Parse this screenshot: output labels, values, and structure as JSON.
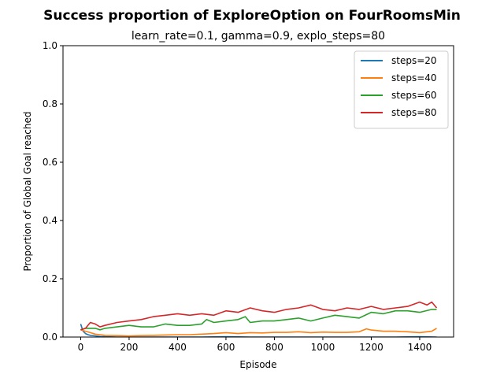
{
  "chart_data": {
    "type": "line",
    "title": "Success proportion of ExploreOption on FourRoomsMin",
    "subtitle": "learn_rate=0.1, gamma=0.9, explo_steps=80",
    "xlabel": "Episode",
    "ylabel": "Proportion of Global Goal reached",
    "xlim": [
      -73,
      1540
    ],
    "ylim": [
      0,
      1
    ],
    "xticks": [
      0,
      200,
      400,
      600,
      800,
      1000,
      1200,
      1400
    ],
    "yticks": [
      0.0,
      0.2,
      0.4,
      0.6,
      0.8,
      1.0
    ],
    "yticklabels": [
      "0.0",
      "0.2",
      "0.4",
      "0.6",
      "0.8",
      "1.0"
    ],
    "grid": false,
    "legend_position": "top-right",
    "series": [
      {
        "name": "steps=20",
        "color": "#1f77b4",
        "x": [
          0,
          10,
          20,
          30,
          40,
          60,
          80,
          100,
          150,
          200,
          300,
          400,
          500,
          600,
          700,
          800,
          900,
          1000,
          1100,
          1200,
          1300,
          1400,
          1470
        ],
        "y": [
          0.045,
          0.02,
          0.012,
          0.008,
          0.006,
          0.004,
          0.002,
          0.001,
          0.0,
          0.0,
          0.0,
          0.0,
          0.0,
          0.001,
          0.0,
          0.0,
          0.0,
          0.0,
          0.0,
          0.0,
          0.0,
          0.001,
          0.0
        ]
      },
      {
        "name": "steps=40",
        "color": "#ff7f0e",
        "x": [
          0,
          20,
          40,
          60,
          80,
          100,
          150,
          200,
          250,
          300,
          350,
          400,
          450,
          500,
          550,
          600,
          650,
          700,
          750,
          800,
          850,
          900,
          950,
          1000,
          1050,
          1100,
          1150,
          1180,
          1200,
          1250,
          1300,
          1350,
          1400,
          1450,
          1470
        ],
        "y": [
          0.025,
          0.02,
          0.015,
          0.01,
          0.008,
          0.006,
          0.005,
          0.004,
          0.005,
          0.006,
          0.007,
          0.008,
          0.008,
          0.01,
          0.012,
          0.015,
          0.012,
          0.015,
          0.014,
          0.016,
          0.016,
          0.018,
          0.015,
          0.017,
          0.016,
          0.016,
          0.018,
          0.028,
          0.024,
          0.02,
          0.02,
          0.018,
          0.015,
          0.02,
          0.03
        ]
      },
      {
        "name": "steps=60",
        "color": "#2ca02c",
        "x": [
          0,
          20,
          40,
          60,
          80,
          100,
          150,
          200,
          250,
          300,
          350,
          400,
          450,
          500,
          520,
          550,
          600,
          650,
          680,
          700,
          750,
          800,
          850,
          900,
          950,
          1000,
          1050,
          1100,
          1150,
          1200,
          1250,
          1300,
          1350,
          1400,
          1450,
          1470
        ],
        "y": [
          0.025,
          0.03,
          0.03,
          0.03,
          0.025,
          0.03,
          0.035,
          0.04,
          0.035,
          0.035,
          0.045,
          0.04,
          0.04,
          0.045,
          0.06,
          0.05,
          0.055,
          0.06,
          0.07,
          0.05,
          0.055,
          0.055,
          0.06,
          0.065,
          0.055,
          0.065,
          0.075,
          0.07,
          0.065,
          0.085,
          0.08,
          0.09,
          0.09,
          0.085,
          0.095,
          0.095
        ]
      },
      {
        "name": "steps=80",
        "color": "#d62728",
        "x": [
          0,
          20,
          40,
          60,
          80,
          100,
          150,
          200,
          250,
          300,
          350,
          400,
          450,
          500,
          550,
          600,
          650,
          700,
          750,
          800,
          850,
          900,
          950,
          1000,
          1050,
          1100,
          1150,
          1200,
          1250,
          1300,
          1350,
          1400,
          1430,
          1450,
          1470
        ],
        "y": [
          0.025,
          0.03,
          0.05,
          0.045,
          0.035,
          0.04,
          0.05,
          0.055,
          0.06,
          0.07,
          0.075,
          0.08,
          0.075,
          0.08,
          0.075,
          0.09,
          0.085,
          0.1,
          0.09,
          0.085,
          0.095,
          0.1,
          0.11,
          0.095,
          0.09,
          0.1,
          0.095,
          0.105,
          0.095,
          0.1,
          0.105,
          0.12,
          0.11,
          0.12,
          0.1
        ]
      }
    ]
  }
}
